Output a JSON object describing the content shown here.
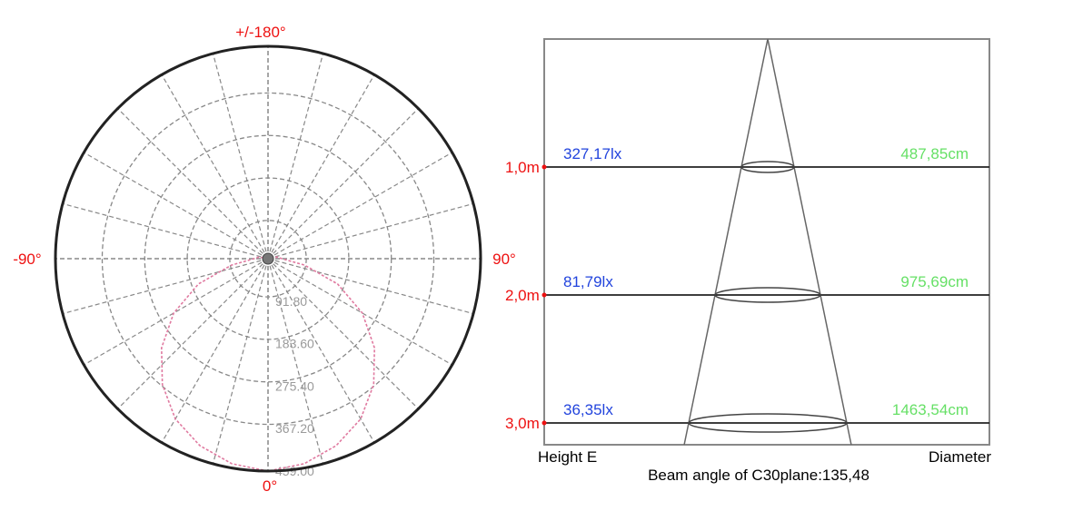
{
  "colors": {
    "angle_label": "#ee1111",
    "height_label": "#ee1111",
    "lux_label": "#2244dd",
    "diameter_label": "#66e066",
    "curve": "#e07aa0",
    "grid": "#888888",
    "frame": "#222222"
  },
  "chart_data": [
    {
      "type": "polar",
      "angle_labels": {
        "top": "+/-180°",
        "left": "-90°",
        "right": "90°",
        "bottom": "0°"
      },
      "radial_max": 459.0,
      "radial_ticks": [
        "91.80",
        "183.60",
        "275.40",
        "367.20",
        "459.00"
      ],
      "radial_tick_values": [
        91.8,
        183.6,
        275.4,
        367.2,
        459.0
      ],
      "series": [
        {
          "values_by_angle": [
            [
              -180,
              0
            ],
            [
              -150,
              0
            ],
            [
              -120,
              0
            ],
            [
              -100,
              20
            ],
            [
              -90,
              30
            ],
            [
              -80,
              80
            ],
            [
              -70,
              160
            ],
            [
              -60,
              235
            ],
            [
              -50,
              300
            ],
            [
              -40,
              355
            ],
            [
              -30,
              400
            ],
            [
              -20,
              430
            ],
            [
              -10,
              450
            ],
            [
              0,
              459
            ],
            [
              10,
              450
            ],
            [
              20,
              430
            ],
            [
              30,
              400
            ],
            [
              40,
              355
            ],
            [
              50,
              300
            ],
            [
              60,
              235
            ],
            [
              70,
              160
            ],
            [
              80,
              80
            ],
            [
              90,
              30
            ],
            [
              100,
              20
            ],
            [
              120,
              0
            ],
            [
              150,
              0
            ],
            [
              180,
              0
            ]
          ]
        }
      ]
    },
    {
      "type": "table",
      "title": "Beam angle of C30plane:135,48",
      "column_left": "Height E",
      "column_right": "Diameter",
      "rows": [
        {
          "height": "1,0m",
          "illuminance": "327,17lx",
          "diameter": "487,85cm",
          "height_m": 1.0
        },
        {
          "height": "2,0m",
          "illuminance": "81,79lx",
          "diameter": "975,69cm",
          "height_m": 2.0
        },
        {
          "height": "3,0m",
          "illuminance": "36,35lx",
          "diameter": "1463,54cm",
          "height_m": 3.0
        }
      ]
    }
  ]
}
